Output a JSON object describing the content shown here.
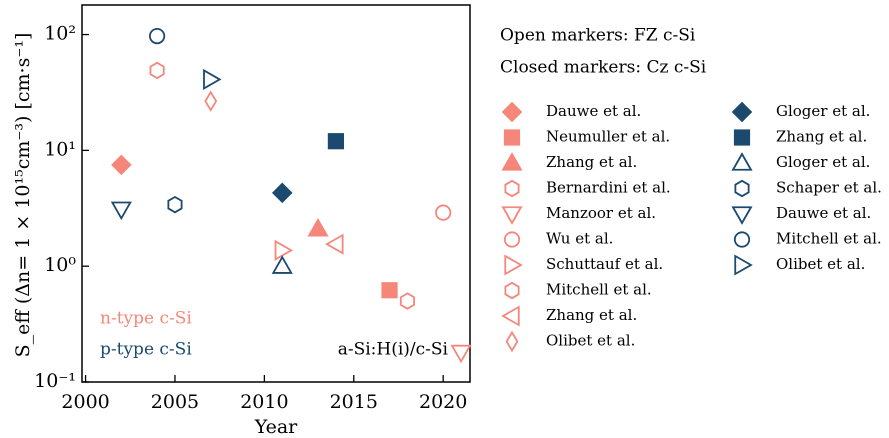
{
  "chart_data": {
    "type": "scatter",
    "xlabel": "Year",
    "ylabel": "S_eff (Δn= 1 × 10¹⁵cm⁻³) [cm·s⁻¹]",
    "xlim": [
      1999.8,
      2021.5
    ],
    "xticks": [
      2000,
      2005,
      2010,
      2015,
      2020
    ],
    "ylim": [
      0.1,
      180
    ],
    "log_y": true,
    "yticks": [
      {
        "value": 0.1,
        "label": "10⁻¹"
      },
      {
        "value": 1,
        "label": "10⁰"
      },
      {
        "value": 10,
        "label": "10¹"
      },
      {
        "value": 100,
        "label": "10²"
      }
    ],
    "legend_titles": [
      "Open markers: FZ c-Si",
      "Closed markers: Cz c-Si"
    ],
    "annotations": [
      {
        "text": "n-type c-Si",
        "color": "#f4877a"
      },
      {
        "text": "p-type c-Si",
        "color": "#1b4a6e"
      },
      {
        "text": "a-Si:H(i)/c-Si",
        "color": "#000000"
      }
    ],
    "series": [
      {
        "name": "Dauwe et al.",
        "color": "#f4877a",
        "marker": "diamond",
        "filled": true,
        "x": [
          2002
        ],
        "values": [
          7.5
        ]
      },
      {
        "name": "Neumuller et al.",
        "color": "#f4877a",
        "marker": "square",
        "filled": true,
        "x": [
          2017
        ],
        "values": [
          0.62
        ]
      },
      {
        "name": "Zhang et al.",
        "color": "#f4877a",
        "marker": "triangle-up",
        "filled": true,
        "x": [
          2013
        ],
        "values": [
          2.1
        ]
      },
      {
        "name": "Bernardini et al.",
        "color": "#f4877a",
        "marker": "hexagon",
        "filled": false,
        "x": [
          2018
        ],
        "values": [
          0.5
        ]
      },
      {
        "name": "Manzoor et al.",
        "color": "#f4877a",
        "marker": "triangle-down",
        "filled": false,
        "x": [
          2021
        ],
        "values": [
          0.18
        ]
      },
      {
        "name": "Wu et al.",
        "color": "#f4877a",
        "marker": "circle",
        "filled": false,
        "x": [
          2020
        ],
        "values": [
          2.9
        ]
      },
      {
        "name": "Schuttauf et al.",
        "color": "#f4877a",
        "marker": "triangle-right",
        "filled": false,
        "x": [
          2011
        ],
        "values": [
          1.37
        ]
      },
      {
        "name": "Mitchell et al.",
        "color": "#f4877a",
        "marker": "hexagon",
        "filled": false,
        "x": [
          2004
        ],
        "values": [
          49
        ]
      },
      {
        "name": "Zhang et al.",
        "color": "#f4877a",
        "marker": "triangle-left",
        "filled": false,
        "x": [
          2014
        ],
        "values": [
          1.55
        ]
      },
      {
        "name": "Olibet et al.",
        "color": "#f4877a",
        "marker": "thin-diamond",
        "filled": false,
        "x": [
          2007
        ],
        "values": [
          26.6
        ]
      },
      {
        "name": "Gloger et al.",
        "color": "#1b4a6e",
        "marker": "diamond",
        "filled": true,
        "x": [
          2011
        ],
        "values": [
          4.3
        ]
      },
      {
        "name": "Zhang et al.",
        "color": "#1b4a6e",
        "marker": "square",
        "filled": true,
        "x": [
          2014
        ],
        "values": [
          12
        ]
      },
      {
        "name": "Gloger et al.",
        "color": "#1b4a6e",
        "marker": "triangle-up",
        "filled": false,
        "x": [
          2011
        ],
        "values": [
          1.0
        ]
      },
      {
        "name": "Schaper et al.",
        "color": "#1b4a6e",
        "marker": "hexagon",
        "filled": false,
        "x": [
          2005
        ],
        "values": [
          3.4
        ]
      },
      {
        "name": "Dauwe et al.",
        "color": "#1b4a6e",
        "marker": "triangle-down",
        "filled": false,
        "x": [
          2002
        ],
        "values": [
          3.1
        ]
      },
      {
        "name": "Mitchell et al.",
        "color": "#1b4a6e",
        "marker": "circle",
        "filled": false,
        "x": [
          2004
        ],
        "values": [
          97
        ]
      },
      {
        "name": "Olibet et al.",
        "color": "#1b4a6e",
        "marker": "triangle-right",
        "filled": false,
        "x": [
          2007
        ],
        "values": [
          41
        ]
      }
    ]
  }
}
